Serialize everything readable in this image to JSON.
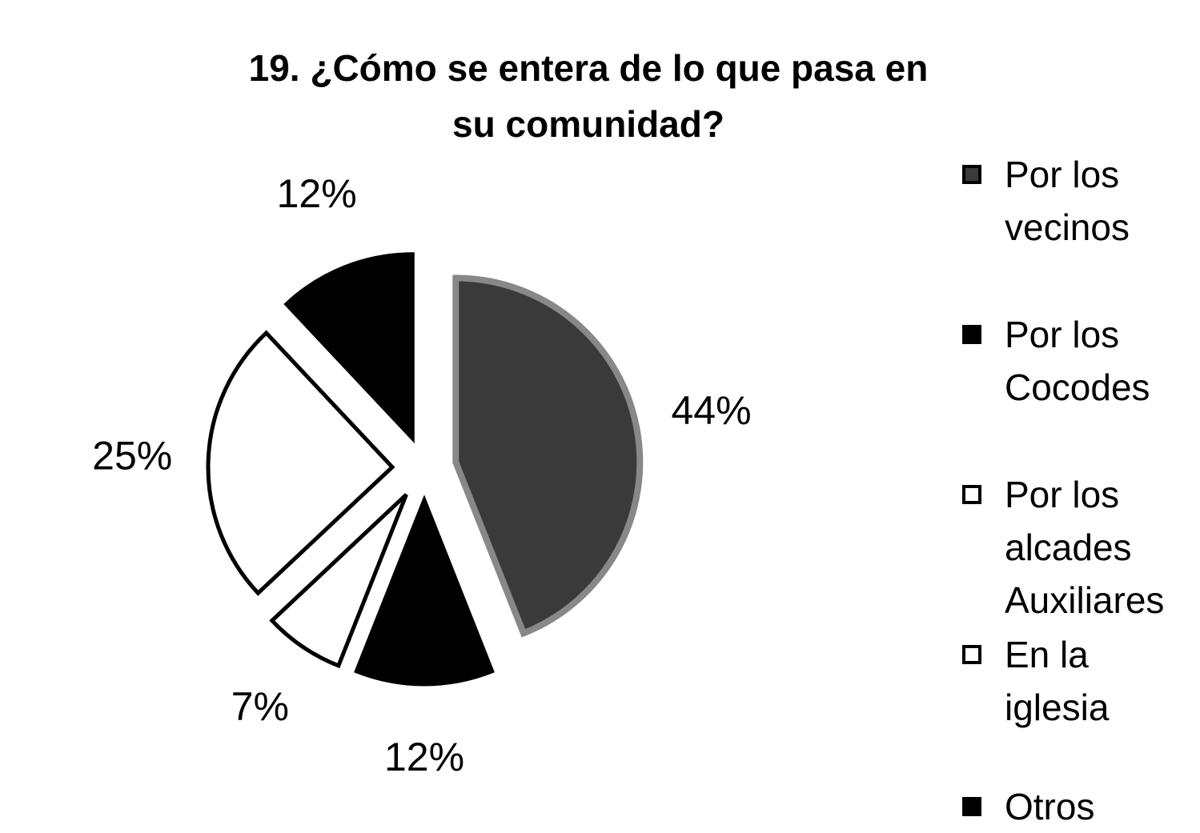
{
  "chart_data": {
    "type": "pie",
    "title": "19. ¿Cómo se entera de lo que pasa en su comunidad?",
    "categories": [
      "Por los vecinos",
      "Por los Cocodes",
      "Por los alcades Auxiliares",
      "En la iglesia",
      "Otros"
    ],
    "values": [
      44,
      12,
      7,
      25,
      12
    ],
    "value_labels": [
      "44%",
      "12%",
      "7%",
      "25%",
      "12%"
    ],
    "colors": [
      "#3a3a3a",
      "#000000",
      "#ffffff",
      "#ffffff",
      "#000000"
    ],
    "legend": "right"
  }
}
